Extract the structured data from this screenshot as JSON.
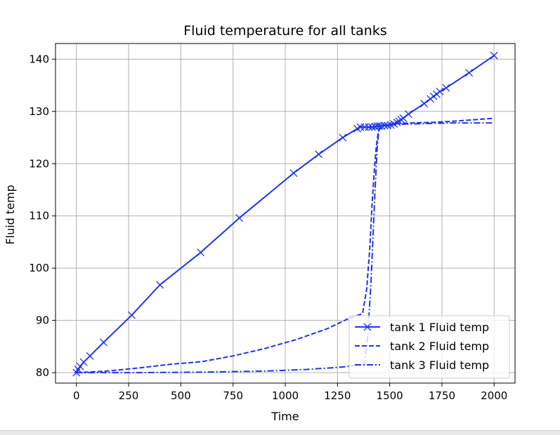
{
  "chart_data": {
    "type": "line",
    "title": "Fluid temperature for all tanks",
    "xlabel": "Time",
    "ylabel": "Fluid temp",
    "xlim": [
      -100,
      2100
    ],
    "ylim": [
      78,
      143
    ],
    "xticks": [
      0,
      250,
      500,
      750,
      1000,
      1250,
      1500,
      1750,
      2000
    ],
    "yticks": [
      80,
      90,
      100,
      110,
      120,
      130,
      140
    ],
    "grid": true,
    "legend_position": "lower-right",
    "color": "#1f35e6",
    "series": [
      {
        "name": "tank 1 Fluid temp",
        "style": "solid",
        "marker": "x",
        "points": [
          [
            0,
            80.0
          ],
          [
            8,
            80.6
          ],
          [
            18,
            81.2
          ],
          [
            35,
            82.0
          ],
          [
            65,
            83.2
          ],
          [
            130,
            85.8
          ],
          [
            265,
            91.0
          ],
          [
            400,
            96.8
          ],
          [
            595,
            103.0
          ],
          [
            780,
            109.6
          ],
          [
            1040,
            118.2
          ],
          [
            1160,
            121.8
          ],
          [
            1275,
            125.0
          ],
          [
            1345,
            126.7
          ],
          [
            1360,
            127.0
          ],
          [
            1380,
            127.0
          ],
          [
            1400,
            127.0
          ],
          [
            1415,
            127.0
          ],
          [
            1430,
            127.1
          ],
          [
            1440,
            127.2
          ],
          [
            1450,
            127.2
          ],
          [
            1460,
            127.2
          ],
          [
            1475,
            127.3
          ],
          [
            1490,
            127.3
          ],
          [
            1505,
            127.4
          ],
          [
            1520,
            127.6
          ],
          [
            1535,
            127.9
          ],
          [
            1545,
            128.1
          ],
          [
            1555,
            128.4
          ],
          [
            1565,
            128.7
          ],
          [
            1590,
            129.5
          ],
          [
            1665,
            131.5
          ],
          [
            1695,
            132.4
          ],
          [
            1710,
            132.9
          ],
          [
            1725,
            133.3
          ],
          [
            1740,
            133.8
          ],
          [
            1770,
            134.5
          ],
          [
            1880,
            137.4
          ],
          [
            2000,
            140.7
          ]
        ]
      },
      {
        "name": "tank 2 Fluid temp",
        "style": "dashed",
        "marker": "none",
        "points": [
          [
            0,
            80.0
          ],
          [
            150,
            80.3
          ],
          [
            300,
            80.9
          ],
          [
            450,
            81.6
          ],
          [
            600,
            82.1
          ],
          [
            750,
            83.2
          ],
          [
            900,
            84.6
          ],
          [
            1050,
            86.3
          ],
          [
            1200,
            88.4
          ],
          [
            1300,
            90.3
          ],
          [
            1370,
            91.3
          ],
          [
            1390,
            96.0
          ],
          [
            1405,
            104.0
          ],
          [
            1415,
            112.0
          ],
          [
            1425,
            118.0
          ],
          [
            1435,
            123.0
          ],
          [
            1445,
            126.0
          ],
          [
            1460,
            127.3
          ],
          [
            1500,
            127.6
          ],
          [
            1600,
            127.8
          ],
          [
            1700,
            127.9
          ],
          [
            1800,
            128.1
          ],
          [
            1900,
            128.4
          ],
          [
            2000,
            128.7
          ]
        ]
      },
      {
        "name": "tank 3 Fluid temp",
        "style": "dashdot",
        "marker": "none",
        "points": [
          [
            0,
            80.0
          ],
          [
            300,
            80.0
          ],
          [
            600,
            80.1
          ],
          [
            900,
            80.3
          ],
          [
            1100,
            80.6
          ],
          [
            1250,
            81.0
          ],
          [
            1350,
            81.4
          ],
          [
            1380,
            81.6
          ],
          [
            1395,
            87.0
          ],
          [
            1410,
            97.0
          ],
          [
            1420,
            106.0
          ],
          [
            1430,
            115.0
          ],
          [
            1440,
            123.0
          ],
          [
            1448,
            126.5
          ],
          [
            1460,
            127.2
          ],
          [
            1500,
            127.5
          ],
          [
            1600,
            127.6
          ],
          [
            1700,
            127.7
          ],
          [
            1800,
            127.8
          ],
          [
            1900,
            127.8
          ],
          [
            2000,
            127.8
          ]
        ]
      }
    ]
  }
}
